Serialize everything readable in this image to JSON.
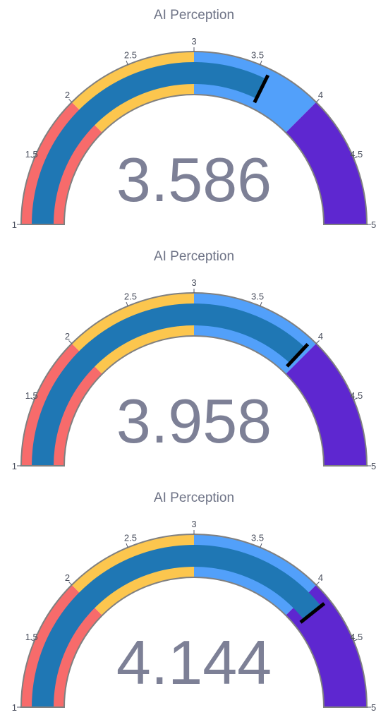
{
  "chart_data": [
    {
      "type": "gauge",
      "title": "AI Perception",
      "value": 3.586,
      "range": [
        1,
        5
      ],
      "tick_values": [
        1,
        1.5,
        2,
        2.5,
        3,
        3.5,
        4,
        4.5,
        5
      ],
      "tick_labels": [
        "1",
        "1.5",
        "2",
        "2.5",
        "3",
        "3.5",
        "4",
        "4.5",
        "5"
      ],
      "steps": [
        {
          "range": [
            1,
            2
          ],
          "color": "#f76b6b"
        },
        {
          "range": [
            2,
            3
          ],
          "color": "#fcc64e"
        },
        {
          "range": [
            3,
            4
          ],
          "color": "#52a0fa"
        },
        {
          "range": [
            4,
            5
          ],
          "color": "#5e27d0"
        }
      ],
      "bar_color": "#1f77b4",
      "threshold": {
        "value": 3.586,
        "color": "#000000"
      }
    },
    {
      "type": "gauge",
      "title": "AI Perception",
      "value": 3.958,
      "range": [
        1,
        5
      ],
      "tick_values": [
        1,
        1.5,
        2,
        2.5,
        3,
        3.5,
        4,
        4.5,
        5
      ],
      "tick_labels": [
        "1",
        "1.5",
        "2",
        "2.5",
        "3",
        "3.5",
        "4",
        "4.5",
        "5"
      ],
      "steps": [
        {
          "range": [
            1,
            2
          ],
          "color": "#f76b6b"
        },
        {
          "range": [
            2,
            3
          ],
          "color": "#fcc64e"
        },
        {
          "range": [
            3,
            4
          ],
          "color": "#52a0fa"
        },
        {
          "range": [
            4,
            5
          ],
          "color": "#5e27d0"
        }
      ],
      "bar_color": "#1f77b4",
      "threshold": {
        "value": 3.958,
        "color": "#000000"
      }
    },
    {
      "type": "gauge",
      "title": "AI Perception",
      "value": 4.144,
      "range": [
        1,
        5
      ],
      "tick_values": [
        1,
        1.5,
        2,
        2.5,
        3,
        3.5,
        4,
        4.5,
        5
      ],
      "tick_labels": [
        "1",
        "1.5",
        "2",
        "2.5",
        "3",
        "3.5",
        "4",
        "4.5",
        "5"
      ],
      "steps": [
        {
          "range": [
            1,
            2
          ],
          "color": "#f76b6b"
        },
        {
          "range": [
            2,
            3
          ],
          "color": "#fcc64e"
        },
        {
          "range": [
            3,
            4
          ],
          "color": "#52a0fa"
        },
        {
          "range": [
            4,
            5
          ],
          "color": "#5e27d0"
        }
      ],
      "bar_color": "#1f77b4",
      "threshold": {
        "value": 4.144,
        "color": "#000000"
      }
    }
  ]
}
